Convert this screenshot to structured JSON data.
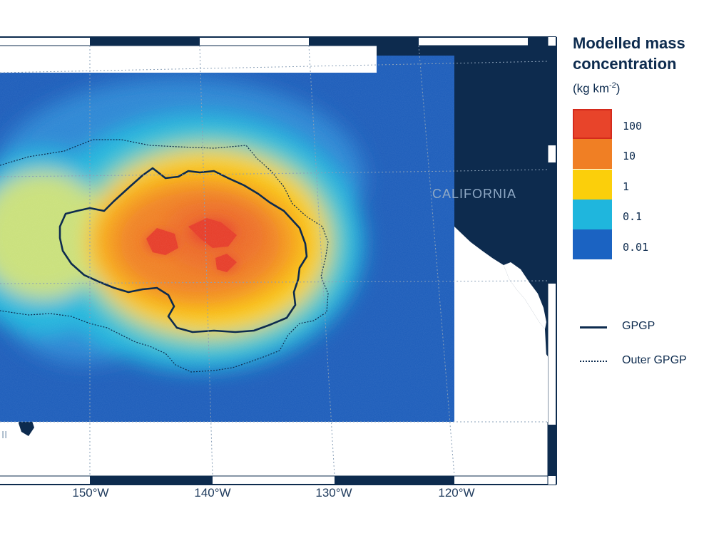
{
  "map": {
    "land_label": "CALIFORNIA",
    "partial_label": "II",
    "colors": {
      "land": "#0d2b4e",
      "ocean_white": "#ffffff",
      "gridline": "#8aa0b8"
    },
    "longitude_labels": [
      "150°W",
      "140°W",
      "130°W",
      "120°W"
    ]
  },
  "legend": {
    "title": "Modelled mass concentration",
    "units_prefix": "(kg km",
    "units_exponent": "-2",
    "units_suffix": ")",
    "classes": [
      {
        "label": "100",
        "color": "#e8442a"
      },
      {
        "label": "10",
        "color": "#f07f24"
      },
      {
        "label": "1",
        "color": "#fbcf0b"
      },
      {
        "label": "0.1",
        "color": "#1fb6dd"
      },
      {
        "label": "0.01",
        "color": "#1b63c2"
      }
    ],
    "lines": [
      {
        "label": "GPGP",
        "style": "solid"
      },
      {
        "label": "Outer GPGP",
        "style": "dotted"
      }
    ]
  }
}
